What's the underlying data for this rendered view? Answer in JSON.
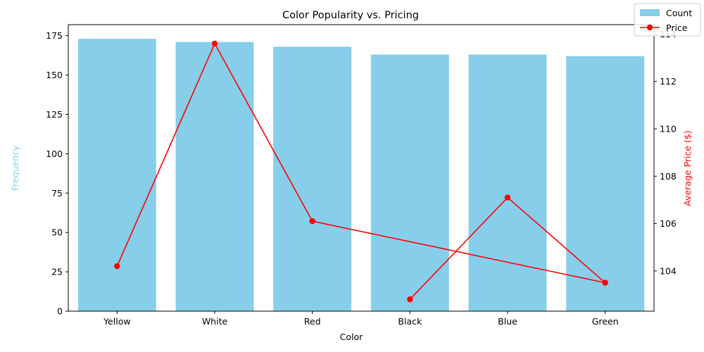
{
  "chart_data": {
    "type": "bar",
    "title": "Color Popularity vs. Pricing",
    "xlabel": "Color",
    "ylabel": "Frequency",
    "y2label": "Average Price ($)",
    "categories": [
      "Yellow",
      "White",
      "Red",
      "Black",
      "Blue",
      "Green"
    ],
    "series": [
      {
        "name": "Count",
        "type": "bar",
        "axis": "left",
        "color": "#87CEEB",
        "values": [
          173,
          171,
          168,
          163,
          163,
          162
        ]
      },
      {
        "name": "Price",
        "type": "line",
        "axis": "right",
        "color": "#FF0000",
        "values": [
          104.2,
          113.6,
          106.1,
          102.8,
          107.1,
          103.5
        ]
      }
    ],
    "line_order": [
      "Yellow",
      "White",
      "Red",
      "Green",
      "Blue",
      "Black"
    ],
    "ylim": [
      0,
      182
    ],
    "y2lim": [
      102.3,
      114.4
    ],
    "yticks": [
      0,
      25,
      50,
      75,
      100,
      125,
      150,
      175
    ],
    "y2ticks": [
      104,
      106,
      108,
      110,
      112,
      114
    ],
    "ylabel_color": "#87CEEB",
    "y2label_color": "#FF0000",
    "legend_position": "top-right",
    "grid": false
  }
}
